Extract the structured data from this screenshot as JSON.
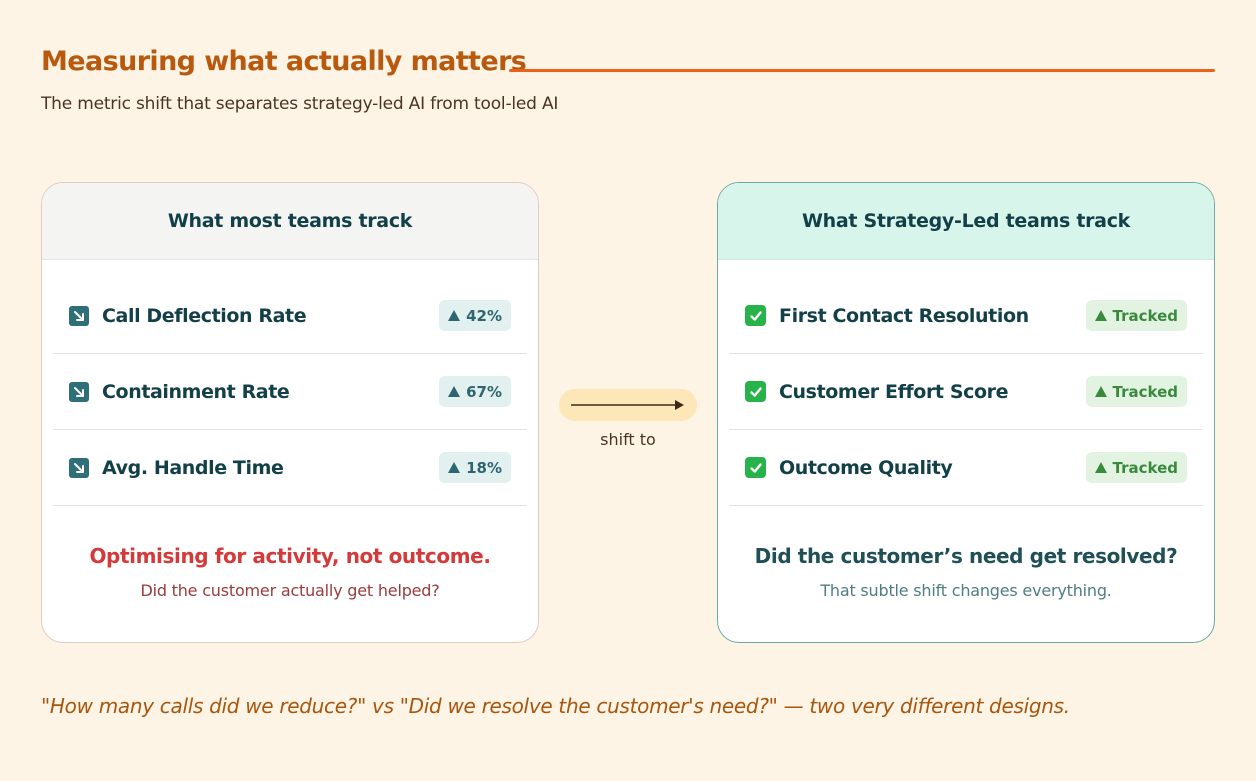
{
  "header": {
    "title": "Measuring what actually matters",
    "subtitle": "The metric shift that separates strategy-led AI from tool-led AI"
  },
  "left_card": {
    "heading": "What most teams track",
    "rows": [
      {
        "icon": "arrow-down-right-icon",
        "label": "Call Deflection Rate",
        "badge": "42%"
      },
      {
        "icon": "arrow-down-right-icon",
        "label": "Containment Rate",
        "badge": "67%"
      },
      {
        "icon": "arrow-down-right-icon",
        "label": "Avg. Handle Time",
        "badge": "18%"
      }
    ],
    "footer_title": "Optimising for activity, not outcome.",
    "footer_subtitle": "Did the customer actually get helped?"
  },
  "connector": {
    "label": "shift to"
  },
  "right_card": {
    "heading": "What Strategy-Led teams track",
    "rows": [
      {
        "icon": "check-box-icon",
        "label": "First Contact Resolution",
        "badge": "Tracked"
      },
      {
        "icon": "check-box-icon",
        "label": "Customer Effort Score",
        "badge": "Tracked"
      },
      {
        "icon": "check-box-icon",
        "label": "Outcome Quality",
        "badge": "Tracked"
      }
    ],
    "footer_title": "Did the customer’s need get resolved?",
    "footer_subtitle": "That subtle shift changes everything."
  },
  "quote": "\"How many calls did we reduce?\" vs \"Did we resolve the customer's need?\" — two very different designs.",
  "colors": {
    "background": "#fdf4e6",
    "title": "#b8590d",
    "accent_rule": "#e8621c",
    "alert_red": "#d53a3a",
    "teal": "#123f48",
    "tracked_green": "#3a8a3e"
  }
}
